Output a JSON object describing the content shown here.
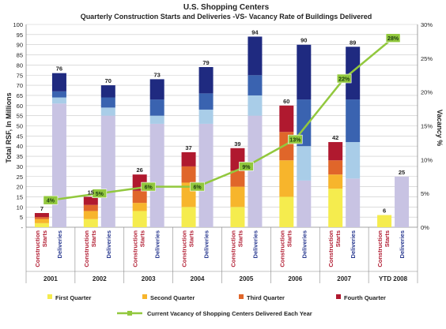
{
  "chart_data": {
    "type": "bar",
    "title": "U.S. Shopping Centers",
    "subtitle": "Quarterly Construction Starts and Deliveries -VS- Vacancy Rate of Buildings Delivered",
    "ylabel": "Total RSF, In Millions",
    "y2label": "Vacancy %",
    "ylim": [
      0,
      100
    ],
    "y2lim": [
      0,
      30
    ],
    "y_ticks": [
      "-",
      "5",
      "10",
      "15",
      "20",
      "25",
      "30",
      "35",
      "40",
      "45",
      "50",
      "55",
      "60",
      "65",
      "70",
      "75",
      "80",
      "85",
      "90",
      "95",
      "100"
    ],
    "y2_ticks": [
      "0%",
      "5%",
      "10%",
      "15%",
      "20%",
      "25%",
      "30%"
    ],
    "years": [
      "2001",
      "2002",
      "2003",
      "2004",
      "2005",
      "2006",
      "2007",
      "YTD 2008"
    ],
    "bar_labels": {
      "construction": "Construction Starts",
      "deliveries": "Deliveries"
    },
    "grid": true,
    "legend_position": "bottom",
    "legend": [
      "First Quarter",
      "Second Quarter",
      "Third Quarter",
      "Fourth Quarter",
      "Current Vacancy of Shopping Centers Delivered Each Year"
    ],
    "colors": {
      "construction": [
        "#f5ec4e",
        "#f7b52c",
        "#e0662a",
        "#b0192f"
      ],
      "deliveries": [
        "#c8c3e3",
        "#a9cde8",
        "#3a63b0",
        "#1f2a80"
      ],
      "vacancy_line": "#92c83e",
      "grid": "#c8c8c8",
      "group_label": "#b0192f",
      "deliveries_label": "#2a3a90"
    },
    "series": [
      {
        "name": "First Quarter",
        "construction": [
          2,
          4,
          8,
          10,
          10,
          15,
          19,
          6
        ],
        "deliveries": [
          61,
          55,
          51,
          51,
          55,
          23,
          24,
          25
        ]
      },
      {
        "name": "Second Quarter",
        "construction": [
          2,
          4,
          4,
          12,
          10,
          18,
          7,
          0
        ],
        "deliveries": [
          3,
          4,
          4,
          7,
          10,
          17,
          18,
          0
        ]
      },
      {
        "name": "Third Quarter",
        "construction": [
          1,
          3,
          6,
          8,
          8,
          14,
          7,
          0
        ],
        "deliveries": [
          3,
          5,
          8,
          8,
          10,
          23,
          21,
          0
        ]
      },
      {
        "name": "Fourth Quarter",
        "construction": [
          2,
          4,
          8,
          7,
          11,
          13,
          9,
          0
        ],
        "deliveries": [
          9,
          6,
          10,
          13,
          19,
          27,
          26,
          0
        ]
      }
    ],
    "construction_totals": [
      "7",
      "15",
      "26",
      "37",
      "39",
      "60",
      "42",
      "6"
    ],
    "deliveries_totals": [
      "76",
      "70",
      "73",
      "79",
      "94",
      "90",
      "89",
      "25"
    ],
    "vacancy": {
      "name": "Current Vacancy of Shopping Centers Delivered Each Year",
      "values": [
        4,
        5,
        6,
        6,
        9,
        13,
        22,
        28
      ],
      "labels": [
        "4%",
        "5%",
        "6%",
        "6%",
        "9%",
        "13%",
        "22%",
        "28%"
      ]
    }
  }
}
